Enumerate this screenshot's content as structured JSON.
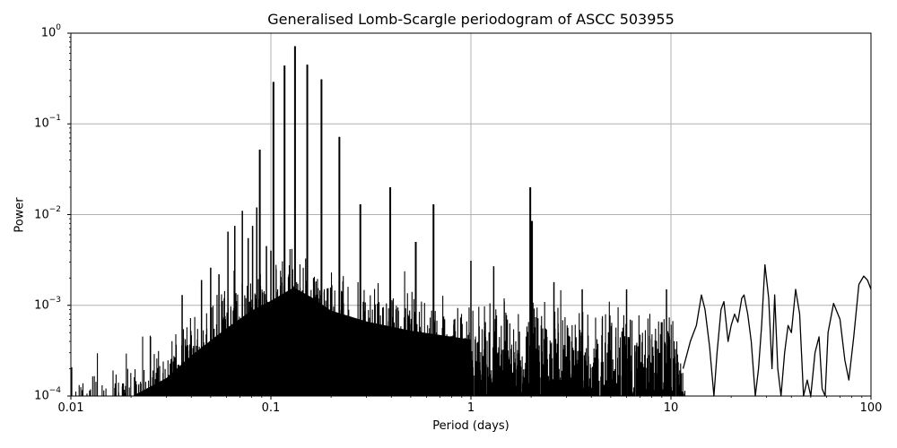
{
  "chart_data": {
    "type": "line",
    "title": "Generalised Lomb-Scargle periodogram of ASCC 503955",
    "xlabel": "Period (days)",
    "ylabel": "Power",
    "xscale": "log",
    "yscale": "log",
    "xlim": [
      0.01,
      100
    ],
    "ylim": [
      0.0001,
      1
    ],
    "grid": true,
    "x_ticks": [
      {
        "value": 0.01,
        "label": "0.01"
      },
      {
        "value": 0.1,
        "label": "0.1"
      },
      {
        "value": 1,
        "label": "1"
      },
      {
        "value": 10,
        "label": "10"
      },
      {
        "value": 100,
        "label": "100"
      }
    ],
    "y_ticks": [
      {
        "value": 1,
        "base": "10",
        "exp": "0"
      },
      {
        "value": 0.1,
        "base": "10",
        "exp": "−1"
      },
      {
        "value": 0.01,
        "base": "10",
        "exp": "−2"
      },
      {
        "value": 0.001,
        "base": "10",
        "exp": "−3"
      },
      {
        "value": 0.0001,
        "base": "10",
        "exp": "−4"
      }
    ],
    "line_color": "#000000",
    "grid_color": "#b0b0b0",
    "major_peaks": [
      {
        "period": 0.088,
        "power": 0.052
      },
      {
        "period": 0.103,
        "power": 0.29
      },
      {
        "period": 0.117,
        "power": 0.44
      },
      {
        "period": 0.132,
        "power": 0.72
      },
      {
        "period": 0.152,
        "power": 0.45
      },
      {
        "period": 0.179,
        "power": 0.31
      },
      {
        "period": 0.22,
        "power": 0.072
      },
      {
        "period": 0.28,
        "power": 0.013
      },
      {
        "period": 0.395,
        "power": 0.02
      },
      {
        "period": 0.53,
        "power": 0.005
      },
      {
        "period": 0.65,
        "power": 0.013
      },
      {
        "period": 1.98,
        "power": 0.02
      },
      {
        "period": 2.02,
        "power": 0.0085
      }
    ],
    "secondary_peaks": [
      {
        "period": 0.061,
        "power": 0.0065
      },
      {
        "period": 0.066,
        "power": 0.0075
      },
      {
        "period": 0.072,
        "power": 0.011
      },
      {
        "period": 0.077,
        "power": 0.0055
      },
      {
        "period": 0.081,
        "power": 0.0075
      },
      {
        "period": 0.085,
        "power": 0.012
      },
      {
        "period": 0.095,
        "power": 0.0045
      },
      {
        "period": 0.1,
        "power": 0.004
      },
      {
        "period": 0.045,
        "power": 0.0019
      },
      {
        "period": 0.05,
        "power": 0.0026
      },
      {
        "period": 0.055,
        "power": 0.0022
      },
      {
        "period": 0.036,
        "power": 0.0013
      },
      {
        "period": 0.025,
        "power": 0.00045
      },
      {
        "period": 1.0,
        "power": 0.0031
      },
      {
        "period": 1.3,
        "power": 0.0027
      },
      {
        "period": 2.6,
        "power": 0.0018
      },
      {
        "period": 3.6,
        "power": 0.0015
      },
      {
        "period": 6.0,
        "power": 0.0015
      },
      {
        "period": 9.5,
        "power": 0.0015
      }
    ],
    "long_period_curve": {
      "description": "smooth oscillating envelope beyond ~12 days",
      "points": [
        [
          11.5,
          0.0002
        ],
        [
          12.5,
          0.0004
        ],
        [
          13.4,
          0.0006
        ],
        [
          14.2,
          0.0013
        ],
        [
          14.8,
          0.0009
        ],
        [
          15.6,
          0.00035
        ],
        [
          16.4,
          8e-05
        ],
        [
          17.0,
          0.0003
        ],
        [
          17.8,
          0.0009
        ],
        [
          18.4,
          0.0011
        ],
        [
          19.3,
          0.0004
        ],
        [
          20.0,
          0.0006
        ],
        [
          20.8,
          0.0008
        ],
        [
          21.6,
          0.00065
        ],
        [
          22.6,
          0.0012
        ],
        [
          23.2,
          0.0013
        ],
        [
          24.2,
          0.0008
        ],
        [
          25.2,
          0.0004
        ],
        [
          26.4,
          8e-05
        ],
        [
          27.4,
          0.0002
        ],
        [
          28.4,
          0.0006
        ],
        [
          29.5,
          0.0028
        ],
        [
          30.8,
          0.0012
        ],
        [
          32.0,
          0.0002
        ],
        [
          33.0,
          0.0013
        ],
        [
          34.2,
          0.0002
        ],
        [
          35.5,
          8e-05
        ],
        [
          37.0,
          0.0003
        ],
        [
          38.5,
          0.0006
        ],
        [
          40.0,
          0.0005
        ],
        [
          42.0,
          0.0015
        ],
        [
          44.0,
          0.0008
        ],
        [
          46.0,
          8e-05
        ],
        [
          48.0,
          0.00015
        ],
        [
          50.0,
          8e-05
        ],
        [
          52.5,
          0.0003
        ],
        [
          55.0,
          0.00045
        ],
        [
          57.0,
          0.00012
        ],
        [
          59.0,
          8e-05
        ],
        [
          61.0,
          0.0005
        ],
        [
          65.0,
          0.00105
        ],
        [
          70.0,
          0.0007
        ],
        [
          74.0,
          0.00025
        ],
        [
          77.5,
          0.00015
        ],
        [
          82.0,
          0.00045
        ],
        [
          87.0,
          0.0017
        ],
        [
          92.0,
          0.0021
        ],
        [
          96.0,
          0.0019
        ],
        [
          100.0,
          0.0015
        ]
      ]
    },
    "noise_floor": {
      "description": "dense forest of narrow peaks from 0.01 to ~12 days",
      "envelope": [
        [
          0.01,
          0.00018
        ],
        [
          0.02,
          0.00028
        ],
        [
          0.03,
          0.00045
        ],
        [
          0.04,
          0.0008
        ],
        [
          0.06,
          0.0016
        ],
        [
          0.08,
          0.0025
        ],
        [
          0.1,
          0.0032
        ],
        [
          0.13,
          0.0045
        ],
        [
          0.16,
          0.0035
        ],
        [
          0.2,
          0.0025
        ],
        [
          0.3,
          0.0019
        ],
        [
          0.5,
          0.0015
        ],
        [
          1.0,
          0.0012
        ],
        [
          2.0,
          0.0011
        ],
        [
          5.0,
          0.0009
        ],
        [
          10.0,
          0.0009
        ],
        [
          12.0,
          0.0003
        ]
      ]
    }
  }
}
